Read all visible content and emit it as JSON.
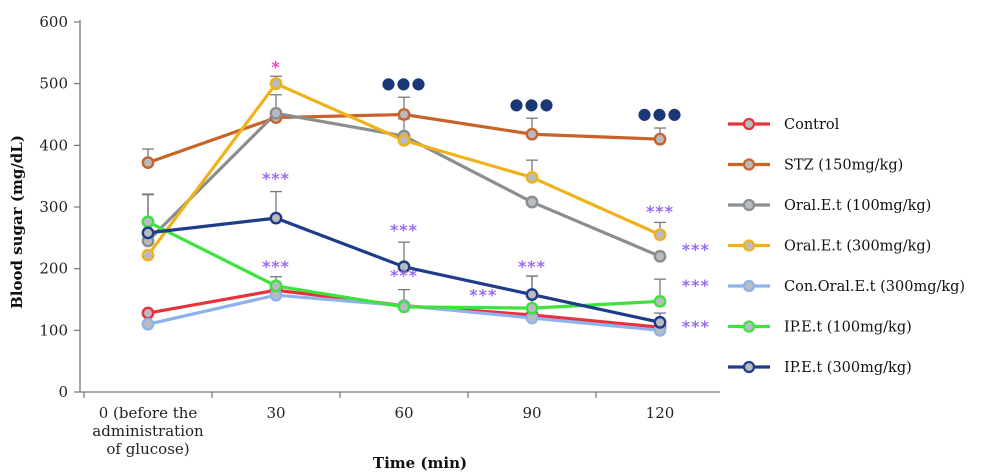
{
  "chart_data": {
    "type": "line",
    "xlabel": "Time (min)",
    "ylabel": "Blood sugar (mg/dL)",
    "ylim": [
      0,
      600
    ],
    "yticks": [
      0,
      100,
      200,
      300,
      400,
      500,
      600
    ],
    "categories": [
      [
        "0 (before the",
        "administration",
        "of glucose)"
      ],
      [
        "30"
      ],
      [
        "60"
      ],
      [
        "90"
      ],
      [
        "120"
      ]
    ],
    "legend_position": "right",
    "series": [
      {
        "name": "Control",
        "color": "#e8323c",
        "values": [
          128,
          165,
          140,
          125,
          105
        ],
        "errors": [
          0,
          0,
          0,
          0,
          0
        ]
      },
      {
        "name": "STZ (150mg/kg)",
        "color": "#c8642a",
        "values": [
          372,
          445,
          450,
          418,
          410
        ],
        "errors": [
          22,
          0,
          28,
          26,
          18
        ]
      },
      {
        "name": "Oral.E.t (100mg/kg)",
        "color": "#8a8e8f",
        "values": [
          245,
          452,
          415,
          308,
          220
        ],
        "errors": [
          0,
          30,
          28,
          0,
          0
        ]
      },
      {
        "name": "Oral.E.t (300mg/kg)",
        "color": "#f0b21a",
        "values": [
          222,
          500,
          408,
          348,
          255
        ],
        "errors": [
          0,
          12,
          0,
          28,
          20
        ]
      },
      {
        "name": "Con.Oral.E.t (300mg/kg)",
        "color": "#8eb2ec",
        "values": [
          110,
          157,
          140,
          120,
          100
        ],
        "errors": [
          0,
          0,
          0,
          0,
          0
        ]
      },
      {
        "name": "IP.E.t (100mg/kg)",
        "color": "#3ee23c",
        "values": [
          276,
          172,
          138,
          136,
          147
        ],
        "errors": [
          45,
          15,
          28,
          52,
          36
        ]
      },
      {
        "name": "IP.E.t (300mg/kg)",
        "color": "#1e3c8a",
        "values": [
          258,
          282,
          203,
          158,
          113
        ],
        "errors": [
          62,
          43,
          40,
          30,
          15
        ]
      }
    ],
    "annotations": [
      {
        "text": "*",
        "color": "#ff3cc8",
        "x": 1,
        "y": 518
      },
      {
        "text": "●●●",
        "color": "#1c3778",
        "x": 2,
        "y": 492
      },
      {
        "text": "●●●",
        "color": "#1c3778",
        "x": 3,
        "y": 458
      },
      {
        "text": "●●●",
        "color": "#1c3778",
        "x": 4,
        "y": 443
      },
      {
        "text": "***",
        "color": "#9a6cf0",
        "x": 1,
        "y": 337
      },
      {
        "text": "***",
        "color": "#9a6cf0",
        "x": 2,
        "y": 254
      },
      {
        "text": "***",
        "color": "#9a6cf0",
        "x": 4,
        "y": 284
      },
      {
        "text": "***",
        "color": "#9a6cf0",
        "x": 1,
        "y": 195
      },
      {
        "text": "***",
        "color": "#9a6cf0",
        "x": 2,
        "y": 180
      },
      {
        "text": "***",
        "color": "#9a6cf0",
        "x": 3,
        "y": 195
      },
      {
        "text": "***",
        "color": "#9a6cf0",
        "x": 2.62,
        "y": 148
      },
      {
        "text": "***",
        "color": "#9a6cf0",
        "x": 4.28,
        "y": 222
      },
      {
        "text": "***",
        "color": "#9a6cf0",
        "x": 4.28,
        "y": 164
      },
      {
        "text": "***",
        "color": "#9a6cf0",
        "x": 4.28,
        "y": 97
      }
    ]
  }
}
